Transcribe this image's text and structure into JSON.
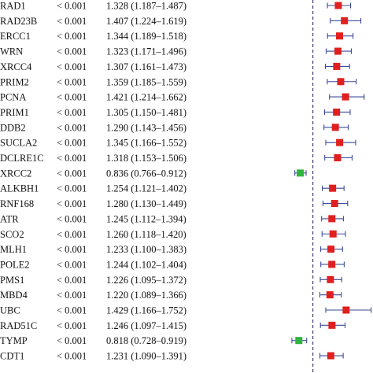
{
  "chart_data": {
    "type": "forest",
    "title": "",
    "xlabel": "",
    "ylabel": "",
    "reference_line": 1,
    "xlim": [
      0.55,
      1.95
    ],
    "colors": {
      "risk": "#e0201f",
      "protective": "#2db53c",
      "ci": "#3b4a9a",
      "reference": "#1a1a60"
    },
    "rows": [
      {
        "gene": "RAD1",
        "p": "< 0.001",
        "hr_text": "1.328 (1.187–1.487)",
        "hr": 1.328,
        "lo": 1.187,
        "hi": 1.487
      },
      {
        "gene": "RAD23B",
        "p": "< 0.001",
        "hr_text": "1.407 (1.224–1.619)",
        "hr": 1.407,
        "lo": 1.224,
        "hi": 1.619
      },
      {
        "gene": "ERCC1",
        "p": "< 0.001",
        "hr_text": "1.344 (1.189–1.518)",
        "hr": 1.344,
        "lo": 1.189,
        "hi": 1.518
      },
      {
        "gene": "WRN",
        "p": "< 0.001",
        "hr_text": "1.323 (1.171–1.496)",
        "hr": 1.323,
        "lo": 1.171,
        "hi": 1.496
      },
      {
        "gene": "XRCC4",
        "p": "< 0.001",
        "hr_text": "1.307 (1.161–1.473)",
        "hr": 1.307,
        "lo": 1.161,
        "hi": 1.473
      },
      {
        "gene": "PRIM2",
        "p": "< 0.001",
        "hr_text": "1.359 (1.185–1.559)",
        "hr": 1.359,
        "lo": 1.185,
        "hi": 1.559
      },
      {
        "gene": "PCNA",
        "p": "< 0.001",
        "hr_text": "1.421 (1.214–1.662)",
        "hr": 1.421,
        "lo": 1.214,
        "hi": 1.662
      },
      {
        "gene": "PRIM1",
        "p": "< 0.001",
        "hr_text": "1.305 (1.150–1.481)",
        "hr": 1.305,
        "lo": 1.15,
        "hi": 1.481
      },
      {
        "gene": "DDB2",
        "p": "< 0.001",
        "hr_text": "1.290 (1.143–1.456)",
        "hr": 1.29,
        "lo": 1.143,
        "hi": 1.456
      },
      {
        "gene": "SUCLA2",
        "p": "< 0.001",
        "hr_text": "1.345 (1.166–1.552)",
        "hr": 1.345,
        "lo": 1.166,
        "hi": 1.552
      },
      {
        "gene": "DCLRE1C",
        "p": "< 0.001",
        "hr_text": "1.318 (1.153–1.506)",
        "hr": 1.318,
        "lo": 1.153,
        "hi": 1.506
      },
      {
        "gene": "XRCC2",
        "p": "< 0.001",
        "hr_text": "0.836 (0.766–0.912)",
        "hr": 0.836,
        "lo": 0.766,
        "hi": 0.912
      },
      {
        "gene": "ALKBH1",
        "p": "< 0.001",
        "hr_text": "1.254 (1.121–1.402)",
        "hr": 1.254,
        "lo": 1.121,
        "hi": 1.402
      },
      {
        "gene": "RNF168",
        "p": "< 0.001",
        "hr_text": "1.280 (1.130–1.449)",
        "hr": 1.28,
        "lo": 1.13,
        "hi": 1.449
      },
      {
        "gene": "ATR",
        "p": "< 0.001",
        "hr_text": "1.245 (1.112–1.394)",
        "hr": 1.245,
        "lo": 1.112,
        "hi": 1.394
      },
      {
        "gene": "SCO2",
        "p": "< 0.001",
        "hr_text": "1.260 (1.118–1.420)",
        "hr": 1.26,
        "lo": 1.118,
        "hi": 1.42
      },
      {
        "gene": "MLH1",
        "p": "< 0.001",
        "hr_text": "1.233 (1.100–1.383)",
        "hr": 1.233,
        "lo": 1.1,
        "hi": 1.383
      },
      {
        "gene": "POLE2",
        "p": "< 0.001",
        "hr_text": "1.244 (1.102–1.404)",
        "hr": 1.244,
        "lo": 1.102,
        "hi": 1.404
      },
      {
        "gene": "PMS1",
        "p": "< 0.001",
        "hr_text": "1.226 (1.095–1.372)",
        "hr": 1.226,
        "lo": 1.095,
        "hi": 1.372
      },
      {
        "gene": "MBD4",
        "p": "< 0.001",
        "hr_text": "1.220 (1.089–1.366)",
        "hr": 1.22,
        "lo": 1.089,
        "hi": 1.366
      },
      {
        "gene": "UBC",
        "p": "< 0.001",
        "hr_text": "1.429 (1.166–1.752)",
        "hr": 1.429,
        "lo": 1.166,
        "hi": 1.752
      },
      {
        "gene": "RAD51C",
        "p": "< 0.001",
        "hr_text": "1.246 (1.097–1.415)",
        "hr": 1.246,
        "lo": 1.097,
        "hi": 1.415
      },
      {
        "gene": "TYMP",
        "p": "< 0.001",
        "hr_text": "0.818 (0.728–0.919)",
        "hr": 0.818,
        "lo": 0.728,
        "hi": 0.919
      },
      {
        "gene": "CDT1",
        "p": "< 0.001",
        "hr_text": "1.231 (1.090–1.391)",
        "hr": 1.231,
        "lo": 1.09,
        "hi": 1.391
      }
    ]
  }
}
